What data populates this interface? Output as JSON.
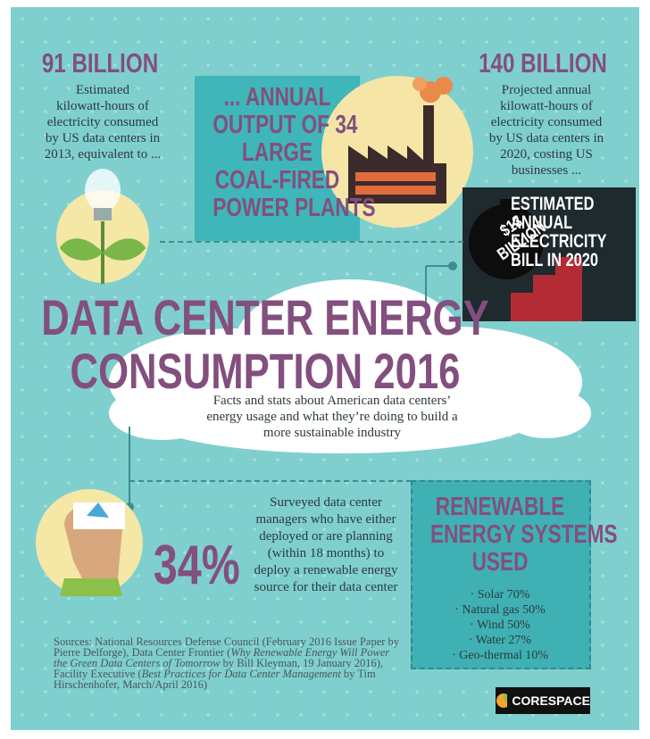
{
  "stat_2013": {
    "value": "91 BILLION",
    "lines": [
      "Estimated",
      "kilowatt-hours of",
      "electricity consumed",
      "by US data centers in",
      "2013, equivalent to ..."
    ]
  },
  "coal": {
    "lines": [
      "... ANNUAL",
      "OUTPUT OF 34",
      "LARGE",
      "COAL-FIRED",
      "POWER PLANTS"
    ]
  },
  "stat_2020": {
    "value": "140 BILLION",
    "lines": [
      "Projected annual",
      "kilowatt-hours of",
      "electricity consumed",
      "by US data centers in",
      "2020, costing US",
      "businesses ..."
    ]
  },
  "bill": {
    "amount_lines": [
      "$13",
      "BILLION"
    ],
    "lines": [
      "ESTIMATED",
      "ANNUAL",
      "ELECTRICITY",
      "BILL IN 2020"
    ]
  },
  "header": {
    "title_lines": [
      "DATA CENTER ENERGY",
      "CONSUMPTION 2016"
    ],
    "subtitle_lines": [
      "Facts and stats about American data centers’",
      "energy usage and what they’re doing to build a",
      "more sustainable industry"
    ]
  },
  "survey": {
    "value": "34%",
    "lines": [
      "Surveyed data center",
      "managers who have either",
      "deployed or are planning",
      "(within 18 months) to",
      "deploy a renewable energy",
      "source for their data center"
    ]
  },
  "renewable": {
    "title_lines": [
      "RENEWABLE",
      "ENERGY SYSTEMS",
      "USED"
    ],
    "items": [
      "Solar 70%",
      "Natural gas 50%",
      "Wind 50%",
      "Water 27%",
      "Geo-thermal 10%"
    ]
  },
  "sources": [
    "Sources: National Resources Defense Council (February 2016 Issue Paper by Pierre Delforge), Data Center Frontier (",
    "Why Renewable Energy Will Power the Green Data Centers of Tomorrow",
    " by Bill Kleyman, 19 January 2016), Facility Executive (",
    "Best Practices for Data Center Management",
    " by Tim Hirschenhofer, March/April 2016)"
  ],
  "logo": "CORESPACE"
}
